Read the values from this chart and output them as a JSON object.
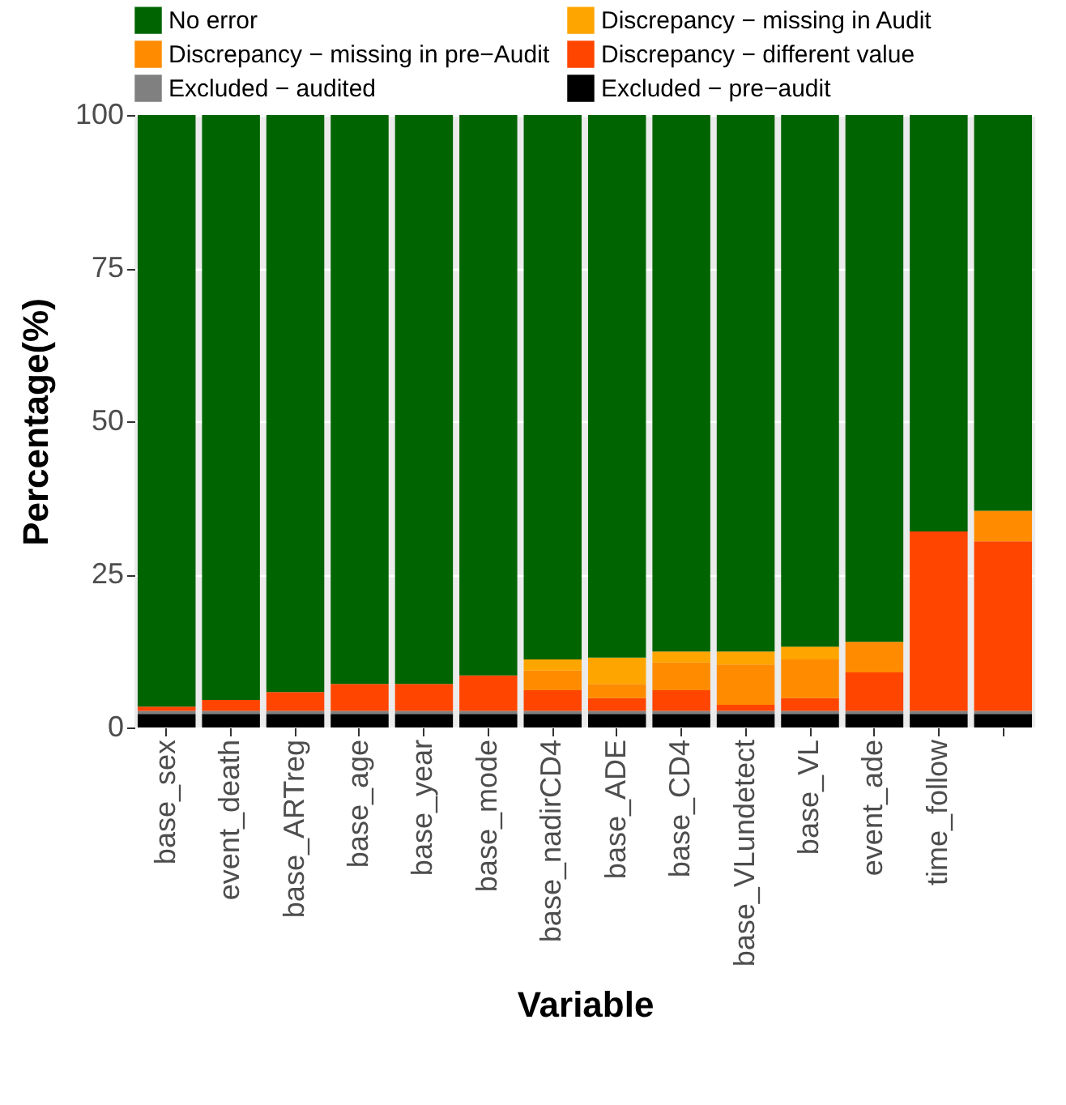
{
  "chart_data": {
    "type": "bar",
    "stacked": true,
    "xlabel": "Variable",
    "ylabel": "Percentage(%)",
    "categories": [
      "base_sex",
      "event_death",
      "base_ARTreg",
      "base_age",
      "base_year",
      "base_mode",
      "base_nadirCD4",
      "base_ADE",
      "base_CD4",
      "base_VLundetect",
      "base_VL",
      "event_ade",
      "time_follow",
      null
    ],
    "series": [
      {
        "name": "Excluded − pre−audit",
        "color": "#000000",
        "values": [
          2.2,
          2.2,
          2.2,
          2.2,
          2.2,
          2.2,
          2.2,
          2.2,
          2.2,
          2.2,
          2.2,
          2.2,
          2.2,
          2.2
        ]
      },
      {
        "name": "Excluded − audited",
        "color": "#808080",
        "values": [
          0.5,
          0.5,
          0.5,
          0.5,
          0.5,
          0.5,
          0.5,
          0.5,
          0.5,
          0.5,
          0.5,
          0.5,
          0.5,
          0.5
        ]
      },
      {
        "name": "Discrepancy − different value",
        "color": "#ff4500",
        "values": [
          0.7,
          1.8,
          3.1,
          4.4,
          4.4,
          5.8,
          3.4,
          2.1,
          3.4,
          1.0,
          2.1,
          6.3,
          29.3,
          27.7
        ]
      },
      {
        "name": "Discrepancy − missing in pre−Audit",
        "color": "#ff8c00",
        "values": [
          0,
          0,
          0,
          0,
          0,
          0,
          3.2,
          2.3,
          4.5,
          6.6,
          6.3,
          5.0,
          0,
          5.0
        ]
      },
      {
        "name": "Discrepancy − missing in Audit",
        "color": "#ffa500",
        "values": [
          0,
          0,
          0,
          0,
          0,
          0,
          1.8,
          4.3,
          1.8,
          2.1,
          2.1,
          0,
          0,
          0
        ]
      },
      {
        "name": "No error",
        "color": "#006400",
        "values": [
          96.6,
          95.5,
          94.2,
          92.9,
          92.9,
          91.5,
          88.9,
          88.6,
          87.6,
          87.6,
          86.8,
          86.0,
          68.0,
          64.6
        ]
      }
    ],
    "ylim": [
      0,
      100
    ],
    "yticks": [
      0,
      25,
      50,
      75,
      100
    ],
    "grid": "y",
    "legend": "top"
  }
}
